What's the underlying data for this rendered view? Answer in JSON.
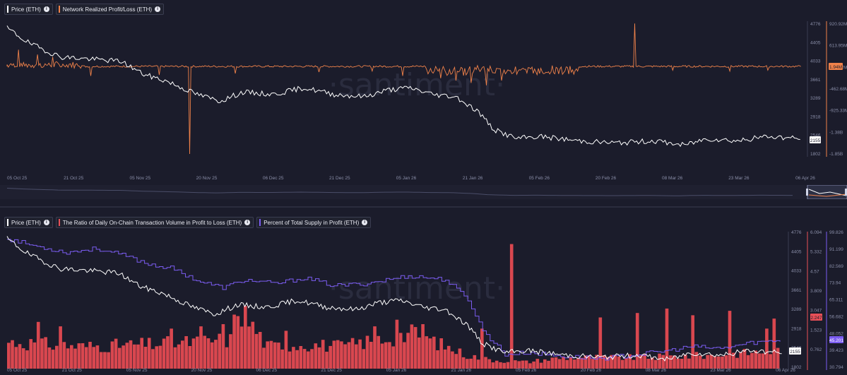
{
  "top": {
    "legend": [
      {
        "label": "Price (ETH)",
        "color": "#ffffff",
        "info": "i"
      },
      {
        "label": "Network Realized Profit/Loss (ETH)",
        "color": "#f0824a",
        "info": "i"
      }
    ],
    "watermark": "·santiment·",
    "x_ticks": [
      "05 Oct 25",
      "21 Oct 25",
      "05 Nov 25",
      "20 Nov 25",
      "06 Dec 25",
      "21 Dec 25",
      "05 Jan 26",
      "21 Jan 26",
      "05 Feb 26",
      "20 Feb 26",
      "08 Mar 26",
      "23 Mar 26",
      "06 Apr 26"
    ],
    "price_ticks": [
      "4776",
      "4405",
      "4033",
      "3661",
      "3289",
      "2918",
      "2546",
      "1802"
    ],
    "pl_ticks": [
      "920.92M",
      "613.95M",
      "306.97M",
      "-462.68M",
      "-925.33M",
      "-1.38B",
      "-1.85B"
    ],
    "price_badge": "2155",
    "pl_badge": "1.94M"
  },
  "bottom": {
    "legend": [
      {
        "label": "Price (ETH)",
        "color": "#ffffff",
        "info": "i"
      },
      {
        "label": "The Ratio of Daily On-Chain Transaction Volume in Profit to Loss (ETH)",
        "color": "#e84f57",
        "info": "i"
      },
      {
        "label": "Percent of Total Supply in Profit (ETH)",
        "color": "#7b5cf0",
        "info": "i"
      }
    ],
    "watermark": "·santiment·",
    "x_ticks": [
      "05 Oct 25",
      "21 Oct 25",
      "05 Nov 25",
      "20 Nov 25",
      "06 Dec 25",
      "21 Dec 25",
      "05 Jan 26",
      "21 Jan 26",
      "05 Feb 26",
      "20 Feb 26",
      "08 Mar 26",
      "23 Mar 26",
      "06 Apr 26"
    ],
    "price_ticks": [
      "4776",
      "4405",
      "4033",
      "3661",
      "3289",
      "2918",
      "2546",
      "1802"
    ],
    "ratio_ticks": [
      "6.094",
      "5.332",
      "4.57",
      "3.809",
      "3.047",
      "1.523",
      "0.762"
    ],
    "supply_ticks": [
      "99.826",
      "91.199",
      "82.569",
      "73.94",
      "65.311",
      "56.682",
      "48.052",
      "39.423",
      "30.794"
    ],
    "price_badge": "2155",
    "ratio_badge": "2.247",
    "supply_badge": "45.201"
  },
  "chart_data": [
    {
      "type": "line",
      "title": "",
      "x_range": [
        "2025-10-01",
        "2026-04-06"
      ],
      "series": [
        {
          "name": "Price (ETH)",
          "axis": "price",
          "color": "#ffffff",
          "anchors": [
            [
              0,
              4650
            ],
            [
              6,
              4300
            ],
            [
              14,
              4000
            ],
            [
              22,
              3950
            ],
            [
              30,
              3900
            ],
            [
              36,
              3600
            ],
            [
              42,
              3450
            ],
            [
              50,
              3150
            ],
            [
              56,
              3000
            ],
            [
              62,
              3200
            ],
            [
              70,
              3150
            ],
            [
              78,
              3300
            ],
            [
              86,
              3150
            ],
            [
              94,
              3100
            ],
            [
              100,
              3250
            ],
            [
              106,
              3300
            ],
            [
              112,
              3150
            ],
            [
              118,
              3100
            ],
            [
              124,
              2750
            ],
            [
              128,
              2350
            ],
            [
              134,
              2150
            ],
            [
              140,
              2200
            ],
            [
              150,
              2100
            ],
            [
              160,
              2050
            ],
            [
              170,
              2100
            ],
            [
              178,
              2000
            ],
            [
              184,
              2150
            ],
            [
              192,
              2100
            ],
            [
              200,
              2200
            ],
            [
              208,
              2150
            ]
          ],
          "ylim": [
            1802,
            4776
          ]
        },
        {
          "name": "Network Realized Profit/Loss (ETH)",
          "axis": "pl",
          "color": "#f0824a",
          "spikes": [
            [
              3,
              0.35
            ],
            [
              8,
              0.25
            ],
            [
              12,
              0.2
            ],
            [
              22,
              -0.2
            ],
            [
              40,
              -0.18
            ],
            [
              48,
              -1.85
            ],
            [
              60,
              -0.15
            ],
            [
              82,
              -0.12
            ],
            [
              96,
              -0.1
            ],
            [
              104,
              -0.2
            ],
            [
              114,
              -0.25
            ],
            [
              118,
              -0.3
            ],
            [
              122,
              -0.35
            ],
            [
              126,
              -0.4
            ],
            [
              130,
              -0.3
            ],
            [
              140,
              -0.15
            ],
            [
              150,
              -0.1
            ],
            [
              165,
              0.9
            ],
            [
              175,
              -0.08
            ],
            [
              190,
              -0.1
            ],
            [
              200,
              -0.08
            ]
          ],
          "unit": "B",
          "ylim": [
            -1.85,
            0.92
          ]
        }
      ],
      "annotations": {
        "last_price": 2155,
        "last_pl": "1.94M"
      }
    },
    {
      "type": "bar",
      "title": "",
      "x_range": [
        "2025-10-01",
        "2026-04-06"
      ],
      "series": [
        {
          "name": "Price (ETH)",
          "axis": "price",
          "type": "line",
          "color": "#ffffff",
          "anchors": [
            [
              0,
              4650
            ],
            [
              6,
              4300
            ],
            [
              14,
              4000
            ],
            [
              22,
              3950
            ],
            [
              30,
              3900
            ],
            [
              36,
              3600
            ],
            [
              42,
              3450
            ],
            [
              50,
              3150
            ],
            [
              56,
              3000
            ],
            [
              62,
              3200
            ],
            [
              70,
              3150
            ],
            [
              78,
              3300
            ],
            [
              86,
              3150
            ],
            [
              94,
              3100
            ],
            [
              100,
              3250
            ],
            [
              106,
              3300
            ],
            [
              112,
              3150
            ],
            [
              118,
              3100
            ],
            [
              124,
              2750
            ],
            [
              128,
              2350
            ],
            [
              134,
              2150
            ],
            [
              140,
              2200
            ],
            [
              150,
              2100
            ],
            [
              160,
              2050
            ],
            [
              170,
              2100
            ],
            [
              178,
              2000
            ],
            [
              184,
              2150
            ],
            [
              192,
              2100
            ],
            [
              200,
              2200
            ],
            [
              208,
              2150
            ]
          ],
          "ylim": [
            1802,
            4776
          ]
        },
        {
          "name": "The Ratio of Daily On-Chain Transaction Volume in Profit to Loss (ETH)",
          "axis": "ratio",
          "type": "bar",
          "color": "#e84f57",
          "anchors": [
            [
              0,
              1.2
            ],
            [
              20,
              1.0
            ],
            [
              40,
              1.1
            ],
            [
              60,
              1.3
            ],
            [
              62,
              2.8
            ],
            [
              70,
              1.0
            ],
            [
              80,
              1.1
            ],
            [
              90,
              1.0
            ],
            [
              100,
              1.3
            ],
            [
              110,
              1.6
            ],
            [
              118,
              1.0
            ],
            [
              124,
              0.6
            ],
            [
              130,
              0.4
            ],
            [
              140,
              0.3
            ],
            [
              150,
              0.5
            ],
            [
              170,
              0.5
            ],
            [
              190,
              0.6
            ],
            [
              208,
              0.8
            ]
          ],
          "spikes": [
            [
              8,
              2.1
            ],
            [
              14,
              1.9
            ],
            [
              44,
              1.8
            ],
            [
              52,
              1.9
            ],
            [
              58,
              2.0
            ],
            [
              75,
              1.7
            ],
            [
              99,
              1.9
            ],
            [
              105,
              2.2
            ],
            [
              112,
              2.0
            ],
            [
              128,
              1.8
            ],
            [
              136,
              5.6
            ],
            [
              160,
              2.3
            ],
            [
              170,
              2.5
            ],
            [
              178,
              2.7
            ],
            [
              185,
              2.4
            ],
            [
              195,
              2.6
            ],
            [
              205,
              1.8
            ],
            [
              207,
              2.25
            ]
          ],
          "ylim": [
            0,
            6.094
          ]
        },
        {
          "name": "Percent of Total Supply in Profit (ETH)",
          "axis": "supply",
          "type": "line",
          "color": "#7b5cf0",
          "anchors": [
            [
              0,
              97
            ],
            [
              8,
              93
            ],
            [
              16,
              90
            ],
            [
              24,
              92
            ],
            [
              32,
              88
            ],
            [
              38,
              84
            ],
            [
              44,
              82
            ],
            [
              52,
              75
            ],
            [
              58,
              72
            ],
            [
              64,
              76
            ],
            [
              72,
              74
            ],
            [
              80,
              77
            ],
            [
              88,
              73
            ],
            [
              96,
              74
            ],
            [
              102,
              76
            ],
            [
              108,
              78
            ],
            [
              114,
              77
            ],
            [
              118,
              76
            ],
            [
              124,
              66
            ],
            [
              128,
              50
            ],
            [
              134,
              38
            ],
            [
              140,
              39
            ],
            [
              150,
              37
            ],
            [
              160,
              36
            ],
            [
              170,
              38
            ],
            [
              178,
              40
            ],
            [
              184,
              42
            ],
            [
              192,
              41
            ],
            [
              200,
              44
            ],
            [
              208,
              45.2
            ]
          ],
          "ylim": [
            30.794,
            99.826
          ]
        }
      ],
      "annotations": {
        "last_price": 2155,
        "last_ratio": 2.247,
        "last_supply": 45.201
      }
    }
  ]
}
